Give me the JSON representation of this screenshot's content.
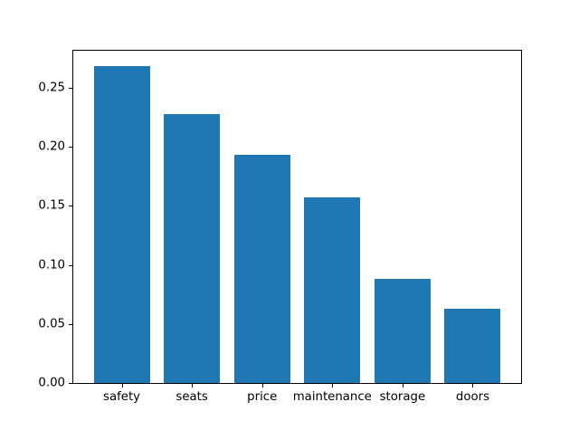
{
  "chart_data": {
    "type": "bar",
    "categories": [
      "safety",
      "seats",
      "price",
      "maintenance",
      "storage",
      "doors"
    ],
    "values": [
      0.268,
      0.228,
      0.193,
      0.157,
      0.088,
      0.063
    ],
    "title": "",
    "xlabel": "",
    "ylabel": "",
    "ylim": [
      0,
      0.2814
    ],
    "yticks": [
      0.0,
      0.05,
      0.1,
      0.15,
      0.2,
      0.25
    ],
    "ytick_label_format": "2dp",
    "bar_color": "#1f77b4",
    "bar_width_fraction": 0.8,
    "grid": false,
    "legend_position": "none",
    "spine_color": "#000000"
  }
}
